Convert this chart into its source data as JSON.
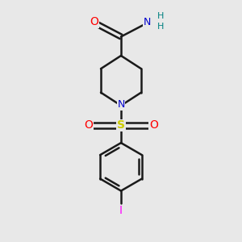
{
  "background_color": "#e8e8e8",
  "bond_color": "#1a1a1a",
  "bond_width": 1.8,
  "atom_colors": {
    "O": "#ff0000",
    "N_amide": "#0000cc",
    "N_pip": "#0000cc",
    "S": "#cccc00",
    "I": "#ff00ff",
    "H": "#008080"
  },
  "fig_size": [
    3.0,
    3.0
  ],
  "dpi": 100
}
